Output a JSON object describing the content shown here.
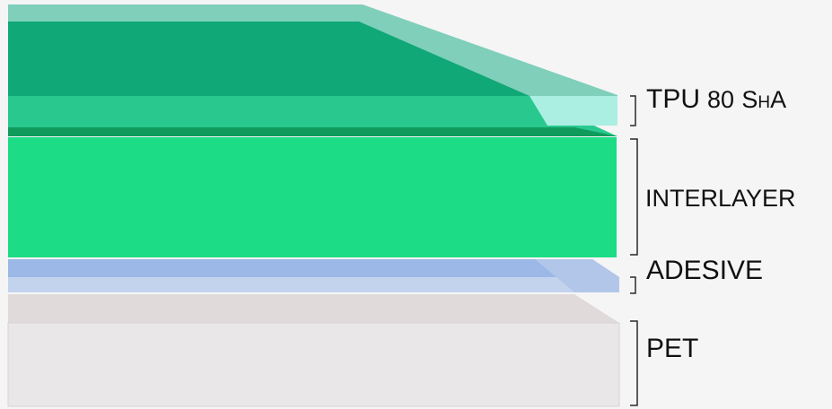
{
  "labels": {
    "tpu_prefix": "TPU",
    "tpu_hardness": "80",
    "tpu_unit_s": "S",
    "tpu_unit_h": "H",
    "tpu_unit_a": "A",
    "interlayer": "INTERLAYER",
    "adesive": "ADESIVE",
    "pet": "PET"
  },
  "colors": {
    "background": "#f5f5f5",
    "tpu_top_face": "#7fcfba",
    "tpu_upper_dark": "#0fa876",
    "tpu_lower_band": "#28c88f",
    "tpu_edge_light": "#abefe2",
    "tpu_divider": "#109a5c",
    "interlayer": "#1ddc86",
    "adesive_top": "#9bb8e6",
    "adesive_bottom": "#c4d3ed",
    "pet_top": "#e0dada",
    "pet_body": "#e9e7e8",
    "bracket": "#2a2a2a"
  }
}
